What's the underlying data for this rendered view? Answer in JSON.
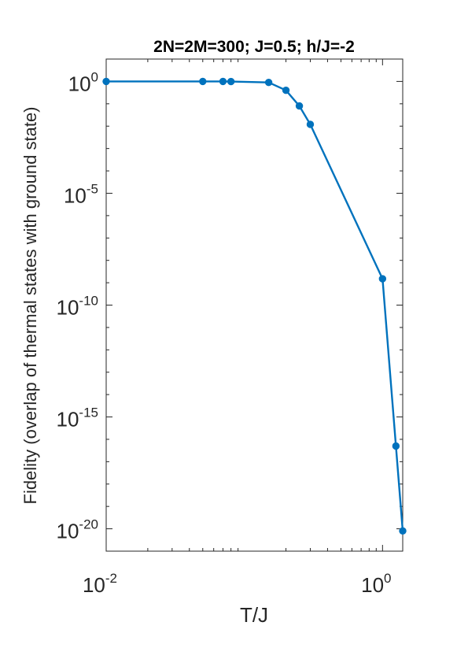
{
  "chart_data": {
    "type": "line",
    "title": "2N=2M=300; J=0.5; h/J=-2",
    "xlabel": "T/J",
    "ylabel": "Fidelity (overlap of thermal states with ground state)",
    "x_scale": "log",
    "y_scale": "log",
    "xlim": [
      0.01,
      1.4
    ],
    "ylim": [
      1e-21,
      10
    ],
    "x_ticks": [
      {
        "value": 0.01,
        "base": "10",
        "exp": "-2"
      },
      {
        "value": 1,
        "base": "10",
        "exp": "0"
      }
    ],
    "y_ticks": [
      {
        "value": 1,
        "base": "10",
        "exp": "0"
      },
      {
        "value": 1e-05,
        "base": "10",
        "exp": "-5"
      },
      {
        "value": 1e-10,
        "base": "10",
        "exp": "-10"
      },
      {
        "value": 1e-15,
        "base": "10",
        "exp": "-15"
      },
      {
        "value": 1e-20,
        "base": "10",
        "exp": "-20"
      }
    ],
    "grid": false,
    "series": [
      {
        "color": "#0072BD",
        "x": [
          0.01,
          0.05,
          0.07,
          0.08,
          0.15,
          0.2,
          0.25,
          0.3,
          1.0,
          1.25,
          1.4
        ],
        "y": [
          1.0,
          1.0,
          1.0,
          0.99,
          0.9,
          0.4,
          0.08,
          0.012,
          1.5e-09,
          5e-17,
          8e-21
        ]
      }
    ]
  }
}
